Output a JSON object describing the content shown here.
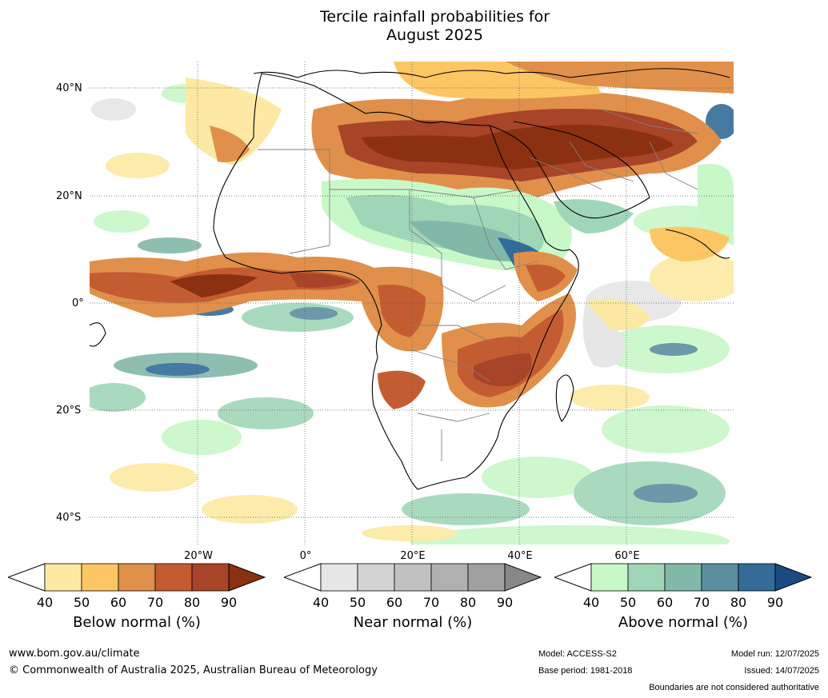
{
  "title": {
    "line1": "Tercile rainfall probabilities for",
    "line2": "August 2025"
  },
  "map": {
    "region": "Africa",
    "lat_labels": [
      "40°N",
      "20°N",
      "0°",
      "20°S",
      "40°S"
    ],
    "lon_labels": [
      "20°W",
      "0°",
      "20°E",
      "40°E",
      "60°E"
    ],
    "colors": {
      "below": [
        "#fde9a3",
        "#fdc664",
        "#e0904a",
        "#c45c32",
        "#a84428",
        "#8b3010"
      ],
      "near": [
        "#e6e6e6",
        "#d3d3d3",
        "#c1c1c1",
        "#b0b0b0",
        "#a0a0a0",
        "#888888"
      ],
      "above": [
        "#c8f8c8",
        "#a0d6b8",
        "#82b8a8",
        "#5b8fa0",
        "#336c98",
        "#1a4c82"
      ],
      "coast": "#000000",
      "border": "#808080"
    }
  },
  "colorbars": [
    {
      "name": "below",
      "label": "Below normal (%)",
      "ticks": [
        "40",
        "50",
        "60",
        "70",
        "80",
        "90"
      ]
    },
    {
      "name": "near",
      "label": "Near normal (%)",
      "ticks": [
        "40",
        "50",
        "60",
        "70",
        "80",
        "90"
      ]
    },
    {
      "name": "above",
      "label": "Above normal (%)",
      "ticks": [
        "40",
        "50",
        "60",
        "70",
        "80",
        "90"
      ]
    }
  ],
  "footer": {
    "url": "www.bom.gov.au/climate",
    "copyright": "© Commonwealth of Australia 2025, Australian Bureau of Meteorology",
    "model": "Model: ACCESS-S2",
    "base_period": "Base period: 1981-2018",
    "model_run": "Model run: 12/07/2025",
    "issued": "Issued: 14/07/2025",
    "boundaries": "Boundaries are not considered authoritative"
  }
}
